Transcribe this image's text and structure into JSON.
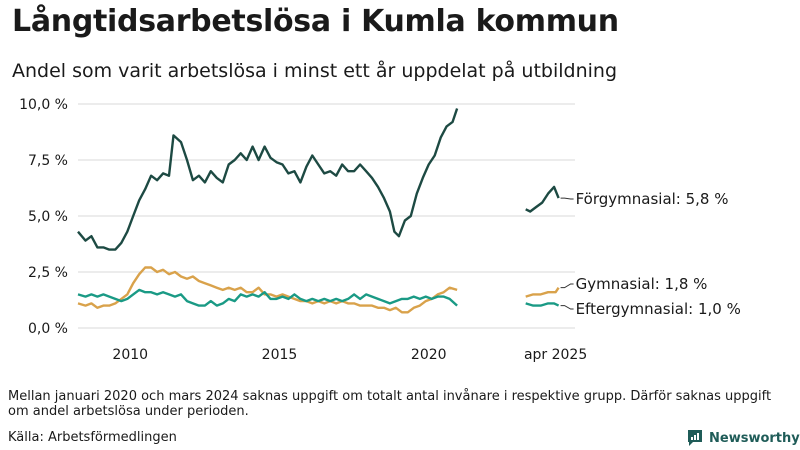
{
  "title": "Långtidsarbetslösa i Kumla kommun",
  "subtitle": "Andel som varit arbetslösa i minst ett år uppdelat på utbildning",
  "note": "Mellan januari 2020 och mars 2024 saknas uppgift om totalt antal invånare i respektive grupp. Därför saknas uppgift om andel arbetslösa under perioden.",
  "source": "Källa: Arbetsförmedlingen",
  "brand": "Newsworthy",
  "colors": {
    "forgymnasial": "#1d4a43",
    "gymnasial": "#d9a24b",
    "eftergymnasial": "#1a9a85",
    "brand": "#1f5c58"
  },
  "chart_data": {
    "type": "line",
    "ylim": [
      0,
      10
    ],
    "yticks": [
      "10,0 %",
      "7,5 %",
      "5,0 %",
      "2,5 %",
      "0,0 %"
    ],
    "xticks": [
      "2010",
      "2015",
      "2020",
      "apr 2025"
    ],
    "series": [
      {
        "name": "Förgymnasial",
        "label": "Förgymnasial: 5,8 %",
        "segments": [
          [
            [
              2008.25,
              4.3
            ],
            [
              2008.5,
              3.9
            ],
            [
              2008.7,
              4.1
            ],
            [
              2008.9,
              3.6
            ],
            [
              2009.1,
              3.6
            ],
            [
              2009.3,
              3.5
            ],
            [
              2009.5,
              3.5
            ],
            [
              2009.7,
              3.8
            ],
            [
              2009.9,
              4.3
            ],
            [
              2010.1,
              5.0
            ],
            [
              2010.3,
              5.7
            ],
            [
              2010.5,
              6.2
            ],
            [
              2010.7,
              6.8
            ],
            [
              2010.9,
              6.6
            ],
            [
              2011.1,
              6.9
            ],
            [
              2011.3,
              6.8
            ],
            [
              2011.45,
              8.6
            ],
            [
              2011.7,
              8.3
            ],
            [
              2011.9,
              7.5
            ],
            [
              2012.1,
              6.6
            ],
            [
              2012.3,
              6.8
            ],
            [
              2012.5,
              6.5
            ],
            [
              2012.7,
              7.0
            ],
            [
              2012.9,
              6.7
            ],
            [
              2013.1,
              6.5
            ],
            [
              2013.3,
              7.3
            ],
            [
              2013.5,
              7.5
            ],
            [
              2013.7,
              7.8
            ],
            [
              2013.9,
              7.5
            ],
            [
              2014.1,
              8.1
            ],
            [
              2014.3,
              7.5
            ],
            [
              2014.5,
              8.1
            ],
            [
              2014.7,
              7.6
            ],
            [
              2014.9,
              7.4
            ],
            [
              2015.1,
              7.3
            ],
            [
              2015.3,
              6.9
            ],
            [
              2015.5,
              7.0
            ],
            [
              2015.7,
              6.5
            ],
            [
              2015.9,
              7.2
            ],
            [
              2016.1,
              7.7
            ],
            [
              2016.3,
              7.3
            ],
            [
              2016.5,
              6.9
            ],
            [
              2016.7,
              7.0
            ],
            [
              2016.9,
              6.8
            ],
            [
              2017.1,
              7.3
            ],
            [
              2017.3,
              7.0
            ],
            [
              2017.5,
              7.0
            ],
            [
              2017.7,
              7.3
            ],
            [
              2017.9,
              7.0
            ],
            [
              2018.1,
              6.7
            ],
            [
              2018.3,
              6.3
            ],
            [
              2018.5,
              5.8
            ],
            [
              2018.7,
              5.2
            ],
            [
              2018.85,
              4.3
            ],
            [
              2019.0,
              4.1
            ],
            [
              2019.2,
              4.8
            ],
            [
              2019.4,
              5.0
            ],
            [
              2019.6,
              6.0
            ],
            [
              2019.8,
              6.7
            ],
            [
              2020.0,
              7.3
            ],
            [
              2020.2,
              7.7
            ],
            [
              2020.4,
              8.5
            ],
            [
              2020.6,
              9.0
            ],
            [
              2020.8,
              9.2
            ],
            [
              2020.95,
              9.8
            ]
          ],
          [
            [
              2023.25,
              5.3
            ],
            [
              2023.4,
              5.2
            ],
            [
              2023.6,
              5.4
            ],
            [
              2023.8,
              5.6
            ],
            [
              2024.0,
              6.0
            ],
            [
              2024.2,
              6.3
            ],
            [
              2024.35,
              5.8
            ]
          ]
        ]
      },
      {
        "name": "Gymnasial",
        "label": "Gymnasial: 1,8 %",
        "segments": [
          [
            [
              2008.25,
              1.1
            ],
            [
              2008.5,
              1.0
            ],
            [
              2008.7,
              1.1
            ],
            [
              2008.9,
              0.9
            ],
            [
              2009.1,
              1.0
            ],
            [
              2009.3,
              1.0
            ],
            [
              2009.5,
              1.1
            ],
            [
              2009.7,
              1.3
            ],
            [
              2009.9,
              1.5
            ],
            [
              2010.1,
              2.0
            ],
            [
              2010.3,
              2.4
            ],
            [
              2010.5,
              2.7
            ],
            [
              2010.7,
              2.7
            ],
            [
              2010.9,
              2.5
            ],
            [
              2011.1,
              2.6
            ],
            [
              2011.3,
              2.4
            ],
            [
              2011.5,
              2.5
            ],
            [
              2011.7,
              2.3
            ],
            [
              2011.9,
              2.2
            ],
            [
              2012.1,
              2.3
            ],
            [
              2012.3,
              2.1
            ],
            [
              2012.5,
              2.0
            ],
            [
              2012.7,
              1.9
            ],
            [
              2012.9,
              1.8
            ],
            [
              2013.1,
              1.7
            ],
            [
              2013.3,
              1.8
            ],
            [
              2013.5,
              1.7
            ],
            [
              2013.7,
              1.8
            ],
            [
              2013.9,
              1.6
            ],
            [
              2014.1,
              1.6
            ],
            [
              2014.3,
              1.8
            ],
            [
              2014.5,
              1.5
            ],
            [
              2014.7,
              1.5
            ],
            [
              2014.9,
              1.4
            ],
            [
              2015.1,
              1.5
            ],
            [
              2015.3,
              1.4
            ],
            [
              2015.5,
              1.3
            ],
            [
              2015.7,
              1.2
            ],
            [
              2015.9,
              1.2
            ],
            [
              2016.1,
              1.1
            ],
            [
              2016.3,
              1.2
            ],
            [
              2016.5,
              1.1
            ],
            [
              2016.7,
              1.2
            ],
            [
              2016.9,
              1.1
            ],
            [
              2017.1,
              1.2
            ],
            [
              2017.3,
              1.1
            ],
            [
              2017.5,
              1.1
            ],
            [
              2017.7,
              1.0
            ],
            [
              2017.9,
              1.0
            ],
            [
              2018.1,
              1.0
            ],
            [
              2018.3,
              0.9
            ],
            [
              2018.5,
              0.9
            ],
            [
              2018.7,
              0.8
            ],
            [
              2018.9,
              0.9
            ],
            [
              2019.1,
              0.7
            ],
            [
              2019.3,
              0.7
            ],
            [
              2019.5,
              0.9
            ],
            [
              2019.7,
              1.0
            ],
            [
              2019.9,
              1.2
            ],
            [
              2020.1,
              1.3
            ],
            [
              2020.3,
              1.5
            ],
            [
              2020.5,
              1.6
            ],
            [
              2020.7,
              1.8
            ],
            [
              2020.95,
              1.7
            ]
          ],
          [
            [
              2023.25,
              1.4
            ],
            [
              2023.5,
              1.5
            ],
            [
              2023.75,
              1.5
            ],
            [
              2024.0,
              1.6
            ],
            [
              2024.25,
              1.6
            ],
            [
              2024.35,
              1.8
            ]
          ]
        ]
      },
      {
        "name": "Eftergymnasial",
        "label": "Eftergymnasial: 1,0 %",
        "segments": [
          [
            [
              2008.25,
              1.5
            ],
            [
              2008.5,
              1.4
            ],
            [
              2008.7,
              1.5
            ],
            [
              2008.9,
              1.4
            ],
            [
              2009.1,
              1.5
            ],
            [
              2009.3,
              1.4
            ],
            [
              2009.5,
              1.3
            ],
            [
              2009.7,
              1.2
            ],
            [
              2009.9,
              1.3
            ],
            [
              2010.1,
              1.5
            ],
            [
              2010.3,
              1.7
            ],
            [
              2010.5,
              1.6
            ],
            [
              2010.7,
              1.6
            ],
            [
              2010.9,
              1.5
            ],
            [
              2011.1,
              1.6
            ],
            [
              2011.3,
              1.5
            ],
            [
              2011.5,
              1.4
            ],
            [
              2011.7,
              1.5
            ],
            [
              2011.9,
              1.2
            ],
            [
              2012.1,
              1.1
            ],
            [
              2012.3,
              1.0
            ],
            [
              2012.5,
              1.0
            ],
            [
              2012.7,
              1.2
            ],
            [
              2012.9,
              1.0
            ],
            [
              2013.1,
              1.1
            ],
            [
              2013.3,
              1.3
            ],
            [
              2013.5,
              1.2
            ],
            [
              2013.7,
              1.5
            ],
            [
              2013.9,
              1.4
            ],
            [
              2014.1,
              1.5
            ],
            [
              2014.3,
              1.4
            ],
            [
              2014.5,
              1.6
            ],
            [
              2014.7,
              1.3
            ],
            [
              2014.9,
              1.3
            ],
            [
              2015.1,
              1.4
            ],
            [
              2015.3,
              1.3
            ],
            [
              2015.5,
              1.5
            ],
            [
              2015.7,
              1.3
            ],
            [
              2015.9,
              1.2
            ],
            [
              2016.1,
              1.3
            ],
            [
              2016.3,
              1.2
            ],
            [
              2016.5,
              1.3
            ],
            [
              2016.7,
              1.2
            ],
            [
              2016.9,
              1.3
            ],
            [
              2017.1,
              1.2
            ],
            [
              2017.3,
              1.3
            ],
            [
              2017.5,
              1.5
            ],
            [
              2017.7,
              1.3
            ],
            [
              2017.9,
              1.5
            ],
            [
              2018.1,
              1.4
            ],
            [
              2018.3,
              1.3
            ],
            [
              2018.5,
              1.2
            ],
            [
              2018.7,
              1.1
            ],
            [
              2018.9,
              1.2
            ],
            [
              2019.1,
              1.3
            ],
            [
              2019.3,
              1.3
            ],
            [
              2019.5,
              1.4
            ],
            [
              2019.7,
              1.3
            ],
            [
              2019.9,
              1.4
            ],
            [
              2020.1,
              1.3
            ],
            [
              2020.3,
              1.4
            ],
            [
              2020.5,
              1.4
            ],
            [
              2020.7,
              1.3
            ],
            [
              2020.95,
              1.0
            ]
          ],
          [
            [
              2023.25,
              1.1
            ],
            [
              2023.5,
              1.0
            ],
            [
              2023.75,
              1.0
            ],
            [
              2024.0,
              1.1
            ],
            [
              2024.2,
              1.1
            ],
            [
              2024.35,
              1.0
            ]
          ]
        ]
      }
    ]
  }
}
